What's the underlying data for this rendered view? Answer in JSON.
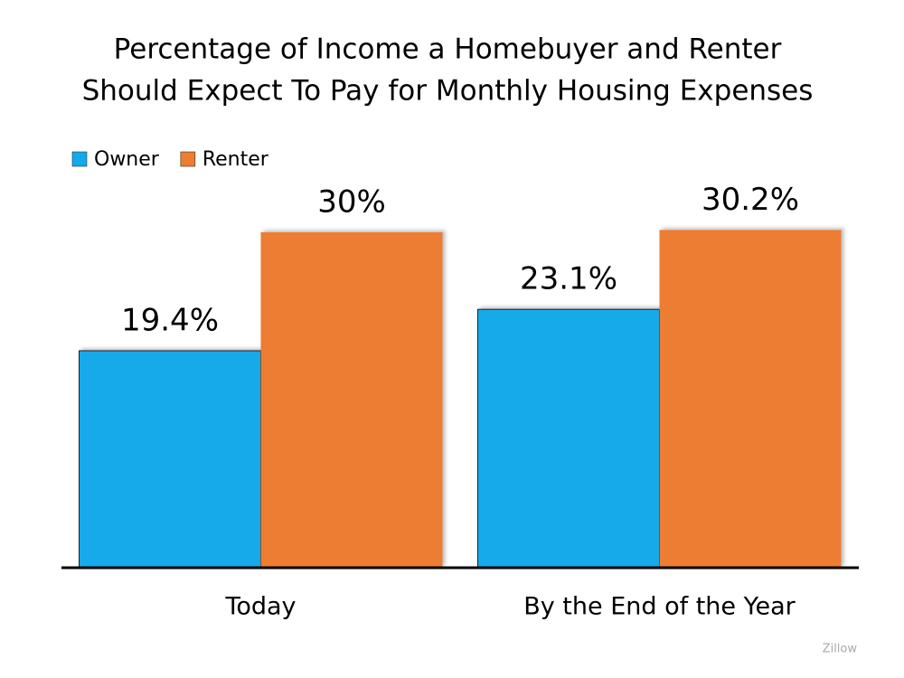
{
  "chart_data": {
    "type": "bar",
    "title": [
      "Percentage of Income a Homebuyer and Renter",
      "Should Expect To Pay for Monthly Housing Expenses"
    ],
    "categories": [
      "Today",
      "By the End of the Year"
    ],
    "series": [
      {
        "name": "Owner",
        "color": "#12aaeb",
        "values": [
          19.4,
          23.1
        ],
        "value_labels": [
          "19.4%",
          "23.1%"
        ]
      },
      {
        "name": "Renter",
        "color": "#ed7d31",
        "values": [
          30,
          30.2
        ],
        "value_labels": [
          "30%",
          "30.2%"
        ]
      }
    ],
    "ylim": [
      0,
      35
    ],
    "legend": "top-left",
    "source": "Zillow"
  }
}
